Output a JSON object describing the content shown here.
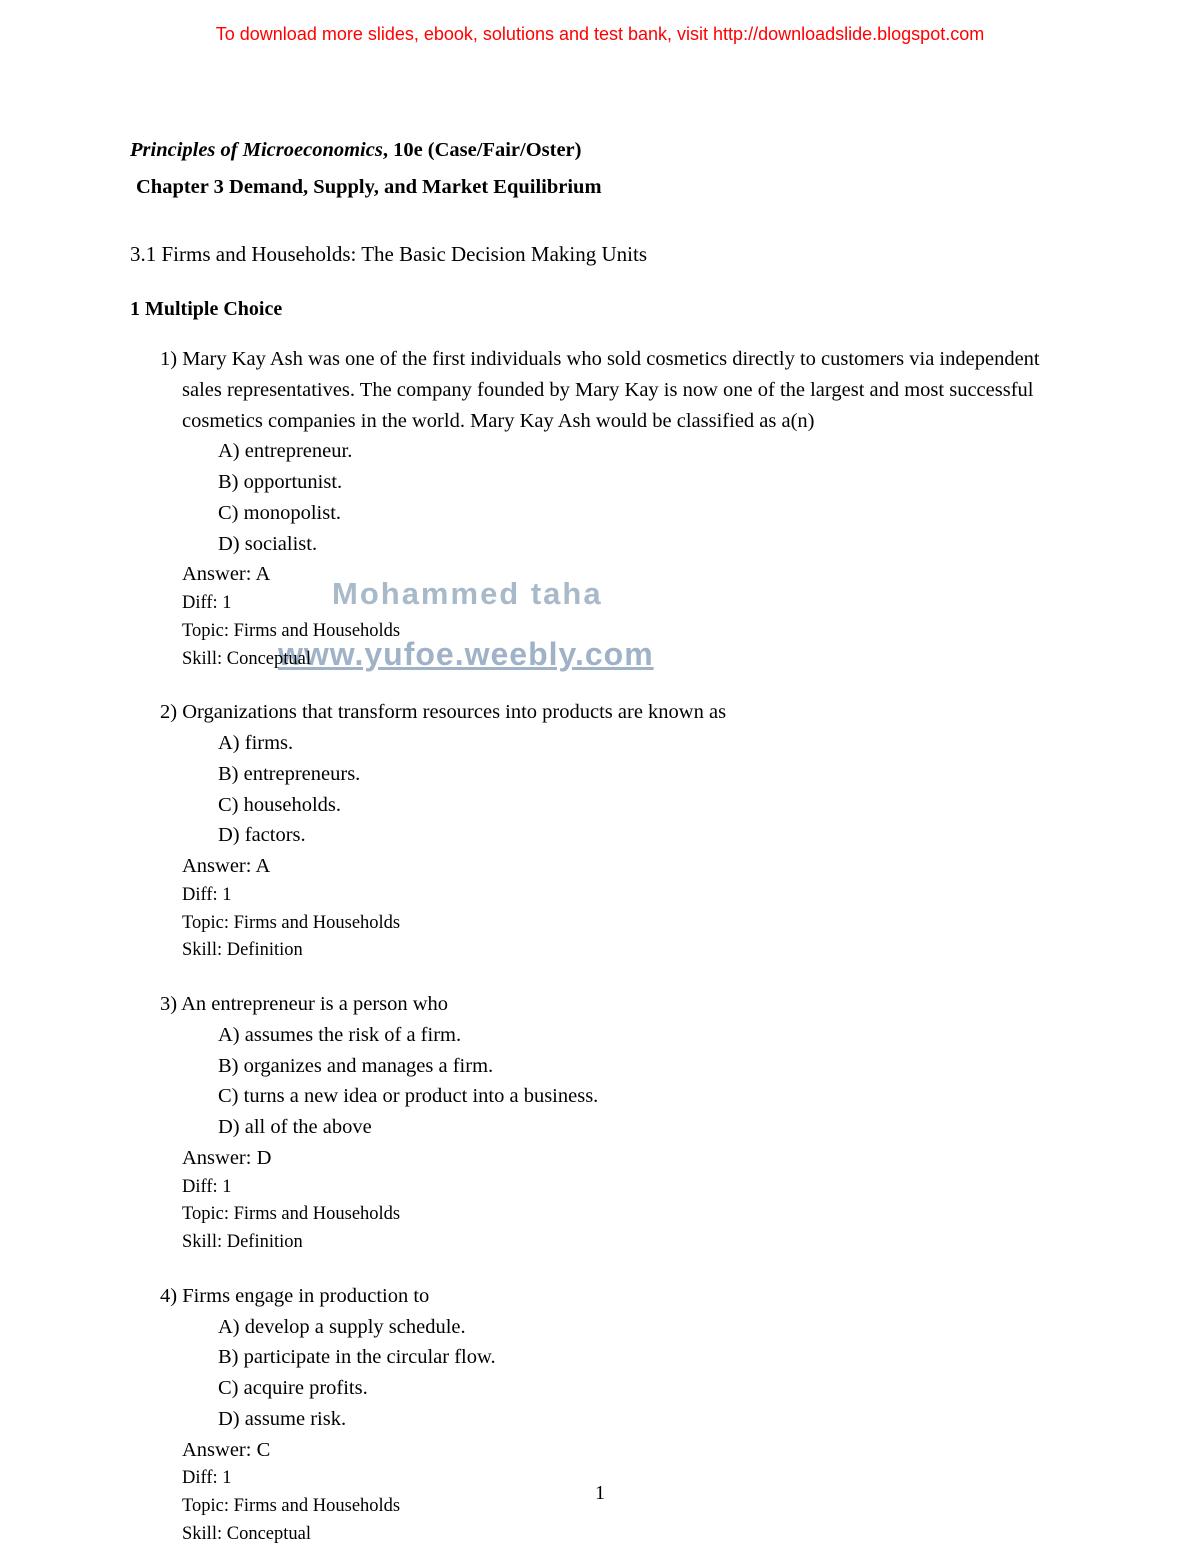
{
  "banner": "To download more slides, ebook, solutions and test bank, visit http://downloadslide.blogspot.com",
  "book_title_italic": "Principles of Microeconomics",
  "book_title_rest": ", 10e (Case/Fair/Oster)",
  "chapter_title": "Chapter 3   Demand, Supply, and Market Equilibrium",
  "section_title": "3.1   Firms and Households: The Basic Decision Making Units",
  "subsection": "1   Multiple Choice",
  "watermark1": "Mohammed taha",
  "watermark2": "www.yufoe.weebly.com",
  "page_number": "1",
  "questions": [
    {
      "num": "1)",
      "stem": "Mary Kay Ash was one of the first individuals who sold cosmetics directly to customers via independent sales representatives. The company founded by Mary Kay is now one of the largest and most successful cosmetics companies in the world. Mary Kay Ash would be classified as a(n)",
      "opts": {
        "A": "A) entrepreneur.",
        "B": "B) opportunist.",
        "C": "C) monopolist.",
        "D": "D) socialist."
      },
      "answer": "Answer:  A",
      "diff": "Diff: 1",
      "topic": "Topic:  Firms and Households",
      "skill": "Skill:  Conceptual"
    },
    {
      "num": "2)",
      "stem": "Organizations that transform resources into products are known as",
      "opts": {
        "A": "A) firms.",
        "B": "B) entrepreneurs.",
        "C": "C) households.",
        "D": "D) factors."
      },
      "answer": "Answer:  A",
      "diff": "Diff: 1",
      "topic": "Topic:  Firms and Households",
      "skill": "Skill:  Definition"
    },
    {
      "num": "3)",
      "stem": "An entrepreneur is a person who",
      "opts": {
        "A": "A) assumes the risk of a firm.",
        "B": "B) organizes and manages a firm.",
        "C": "C) turns a new idea or product into a business.",
        "D": "D) all of the above"
      },
      "answer": "Answer:  D",
      "diff": "Diff: 1",
      "topic": "Topic:  Firms and Households",
      "skill": "Skill:  Definition"
    },
    {
      "num": "4)",
      "stem": "Firms engage in production to",
      "opts": {
        "A": "A) develop a supply schedule.",
        "B": "B) participate in the circular flow.",
        "C": "C) acquire profits.",
        "D": "D) assume risk."
      },
      "answer": "Answer:  C",
      "diff": "Diff: 1",
      "topic": "Topic:  Firms and Households",
      "skill": "Skill:  Conceptual"
    }
  ]
}
